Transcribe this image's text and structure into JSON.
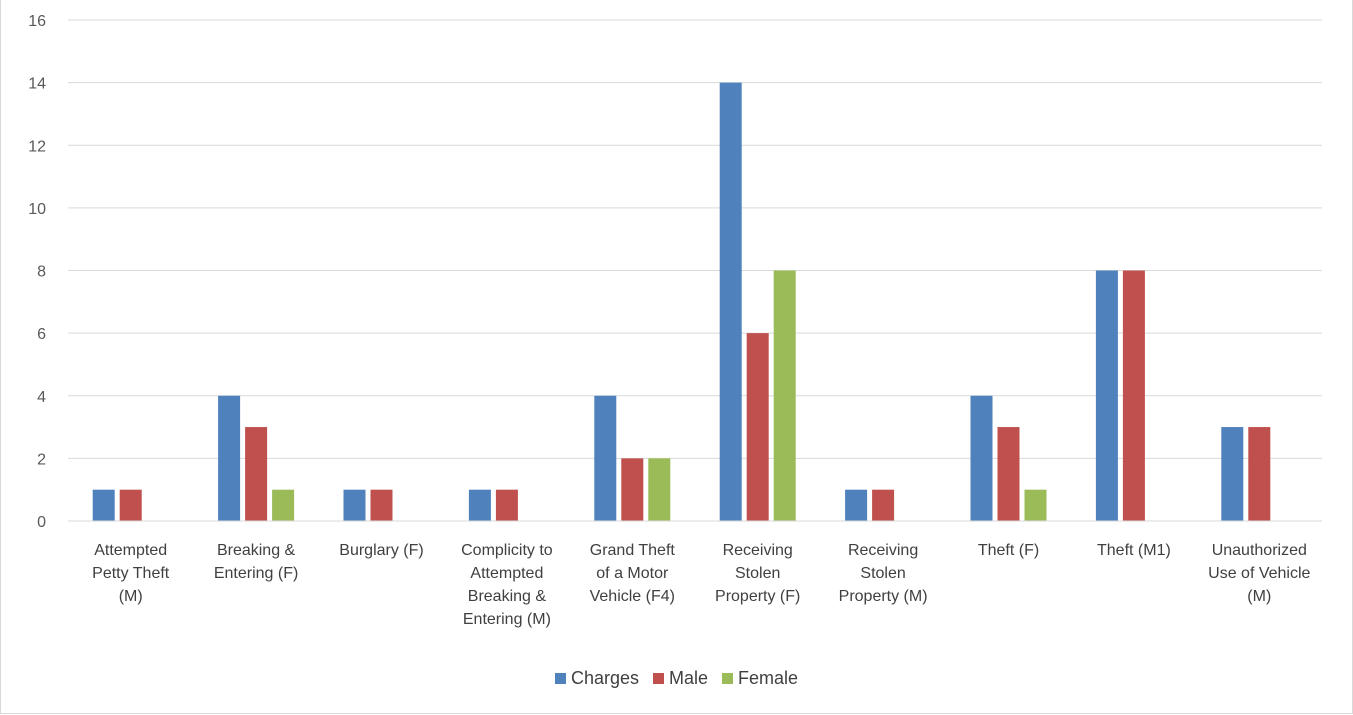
{
  "chart_data": {
    "type": "bar",
    "categories": [
      [
        "Attempted",
        "Petty Theft",
        "(M)"
      ],
      [
        "Breaking &",
        "Entering (F)"
      ],
      [
        "Burglary (F)"
      ],
      [
        "Complicity to",
        "Attempted",
        "Breaking &",
        "Entering (M)"
      ],
      [
        "Grand Theft",
        "of a Motor",
        "Vehicle (F4)"
      ],
      [
        "Receiving",
        "Stolen",
        "Property (F)"
      ],
      [
        "Receiving",
        "Stolen",
        "Property (M)"
      ],
      [
        "Theft (F)"
      ],
      [
        "Theft (M1)"
      ],
      [
        "Unauthorized",
        "Use of Vehicle",
        "(M)"
      ]
    ],
    "series": [
      {
        "name": "Charges",
        "color": "#4f81bd",
        "values": [
          1,
          4,
          1,
          1,
          4,
          14,
          1,
          4,
          8,
          3
        ]
      },
      {
        "name": "Male",
        "color": "#c0504d",
        "values": [
          1,
          3,
          1,
          1,
          2,
          6,
          1,
          3,
          8,
          3
        ]
      },
      {
        "name": "Female",
        "color": "#9bbb59",
        "values": [
          0,
          1,
          0,
          0,
          2,
          8,
          0,
          1,
          0,
          0
        ]
      }
    ],
    "ylim": [
      0,
      16
    ],
    "yticks": [
      0,
      2,
      4,
      6,
      8,
      10,
      12,
      14,
      16
    ],
    "grid": true,
    "legend_position": "bottom",
    "title": "",
    "xlabel": "",
    "ylabel": ""
  }
}
